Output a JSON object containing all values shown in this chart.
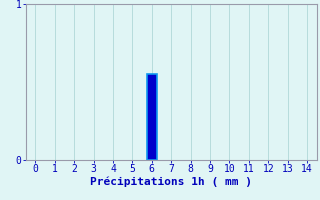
{
  "title": "",
  "xlabel": "Précipitations 1h ( mm )",
  "ylabel": "",
  "xlim": [
    -0.5,
    14.5
  ],
  "ylim": [
    0,
    1.0
  ],
  "yticks": [
    0,
    1
  ],
  "xticks": [
    0,
    1,
    2,
    3,
    4,
    5,
    6,
    7,
    8,
    9,
    10,
    11,
    12,
    13,
    14
  ],
  "bar_positions": [
    6
  ],
  "bar_heights": [
    0.55
  ],
  "bar_width": 0.5,
  "bar_color": "#0000cc",
  "bar_edge_color": "#1199ee",
  "background_color": "#e0f5f5",
  "grid_color": "#b0d8d8",
  "axis_color": "#999aaa",
  "text_color": "#0000bb",
  "xlabel_fontsize": 8,
  "tick_fontsize": 7
}
